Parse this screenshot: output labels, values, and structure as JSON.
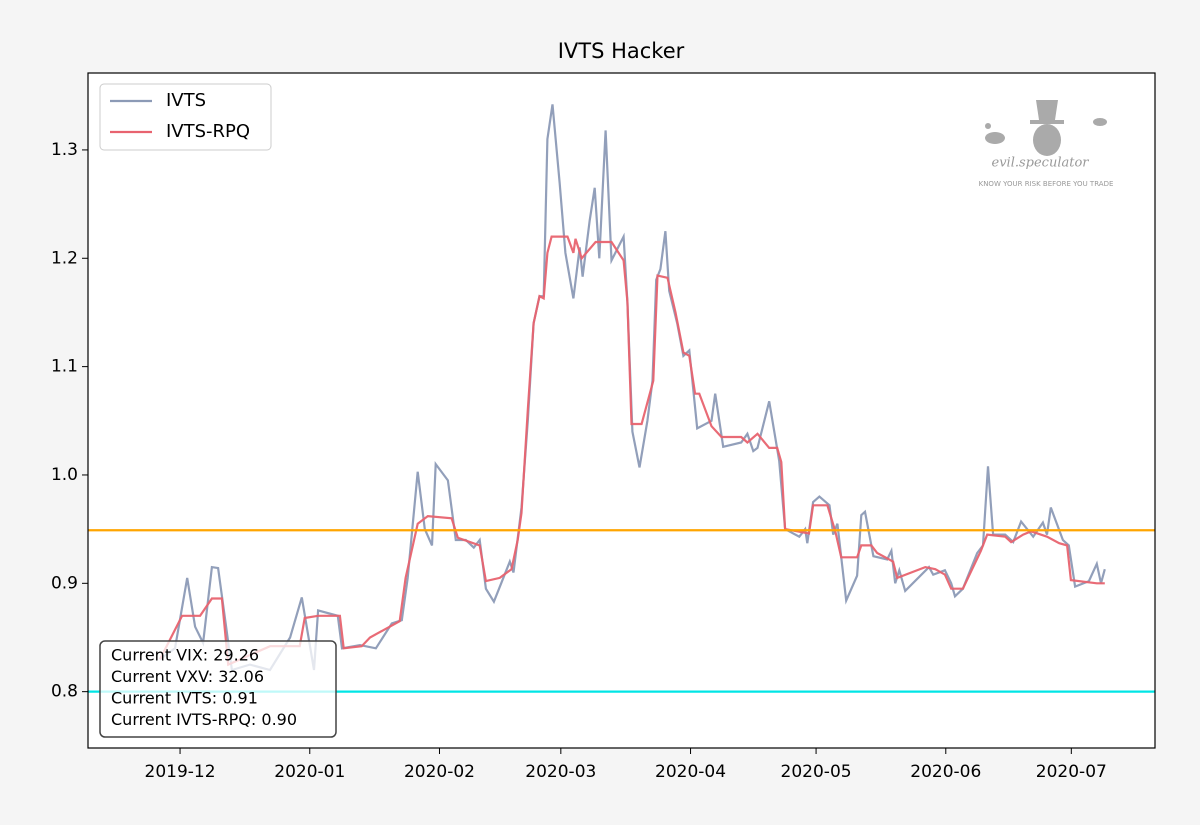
{
  "chart_data": {
    "type": "line",
    "title": "IVTS Hacker",
    "xlim": [
      -22,
      233
    ],
    "xticks": [
      {
        "value": 0,
        "label": "2019-12"
      },
      {
        "value": 31,
        "label": "2020-01"
      },
      {
        "value": 62,
        "label": "2020-02"
      },
      {
        "value": 91,
        "label": "2020-03"
      },
      {
        "value": 122,
        "label": "2020-04"
      },
      {
        "value": 152,
        "label": "2020-05"
      },
      {
        "value": 183,
        "label": "2020-06"
      },
      {
        "value": 213,
        "label": "2020-07"
      }
    ],
    "ylim": [
      0.748,
      1.371
    ],
    "yticks": [
      0.8,
      0.9,
      1.0,
      1.1,
      1.2,
      1.3
    ],
    "ytick_labels": [
      "0.8",
      "0.9",
      "1.0",
      "1.1",
      "1.2",
      "1.3"
    ],
    "legend": "upper left",
    "reference_lines": [
      {
        "value": 0.949,
        "color": "#ffa500"
      },
      {
        "value": 0.8,
        "color": "#00e5e5"
      }
    ],
    "annotations": [
      "Current VIX: 29.26",
      "Current VXV: 32.06",
      "Current IVTS: 0.91",
      "Current IVTS-RPQ: 0.90"
    ],
    "watermark": [
      "evil.speculator",
      "KNOW YOUR RISK BEFORE YOU TRADE"
    ],
    "series": [
      {
        "name": "IVTS",
        "color": "#8c9ab6",
        "x": [
          -4.8,
          -1.2,
          1.7,
          3.6,
          5.5,
          7.6,
          9.1,
          11,
          12.4,
          16.7,
          21.5,
          26.3,
          29.1,
          32,
          33,
          37.7,
          38.7,
          43,
          46.8,
          50.6,
          53,
          54.4,
          56.8,
          58.5,
          60.2,
          61.1,
          64,
          65.9,
          68.3,
          70.2,
          71.6,
          73.1,
          75,
          78.8,
          79.7,
          81.6,
          83.1,
          84.5,
          85.9,
          86.9,
          87.8,
          89,
          90.7,
          92.1,
          94,
          95.5,
          96.2,
          97.9,
          99.1,
          100.2,
          101.7,
          103.1,
          106,
          106.9,
          108.1,
          109.8,
          111.7,
          112.9,
          113.8,
          114.8,
          116,
          116.9,
          118.8,
          120.3,
          121.7,
          123.6,
          127,
          127.9,
          129.8,
          134.1,
          135.6,
          137,
          138,
          140.8,
          143.2,
          144.6,
          148,
          149.4,
          149.9,
          151.3,
          152.8,
          155.2,
          156.1,
          157.1,
          159.2,
          161.8,
          162.8,
          163.7,
          165.7,
          169,
          170,
          170.9,
          171.9,
          173.3,
          179,
          180,
          182.8,
          184.3,
          185.2,
          187.1,
          190.5,
          191.9,
          193.1,
          194.3,
          197.2,
          199.1,
          201,
          203.9,
          206.2,
          207.2,
          208.1,
          211,
          212.4,
          213.9,
          217.2,
          219.1,
          220.1,
          221
        ],
        "values": [
          0.83,
          0.84,
          0.905,
          0.86,
          0.845,
          0.915,
          0.914,
          0.86,
          0.82,
          0.825,
          0.82,
          0.85,
          0.887,
          0.82,
          0.875,
          0.87,
          0.84,
          0.843,
          0.84,
          0.863,
          0.866,
          0.905,
          1.003,
          0.95,
          0.935,
          1.01,
          0.995,
          0.94,
          0.94,
          0.933,
          0.94,
          0.895,
          0.883,
          0.92,
          0.91,
          0.97,
          1.05,
          1.14,
          1.165,
          1.165,
          1.31,
          1.342,
          1.27,
          1.205,
          1.163,
          1.21,
          1.183,
          1.235,
          1.265,
          1.2,
          1.318,
          1.198,
          1.22,
          1.16,
          1.04,
          1.007,
          1.05,
          1.087,
          1.18,
          1.19,
          1.225,
          1.17,
          1.14,
          1.11,
          1.115,
          1.043,
          1.05,
          1.075,
          1.026,
          1.03,
          1.038,
          1.022,
          1.025,
          1.068,
          1.013,
          0.95,
          0.943,
          0.95,
          0.937,
          0.975,
          0.98,
          0.972,
          0.945,
          0.955,
          0.884,
          0.907,
          0.963,
          0.966,
          0.925,
          0.922,
          0.93,
          0.9,
          0.912,
          0.893,
          0.915,
          0.908,
          0.912,
          0.9,
          0.888,
          0.895,
          0.928,
          0.935,
          1.008,
          0.945,
          0.945,
          0.938,
          0.957,
          0.943,
          0.956,
          0.945,
          0.97,
          0.94,
          0.935,
          0.897,
          0.902,
          0.918,
          0.9,
          0.913
        ]
      },
      {
        "name": "IVTS-RPQ",
        "color": "#e8636f",
        "x": [
          -4.8,
          0.5,
          4.8,
          7.6,
          10,
          11.5,
          21.5,
          28.6,
          29.8,
          33,
          38.2,
          39.1,
          43.4,
          45.4,
          52.5,
          53.9,
          56.8,
          59.2,
          64.9,
          66.4,
          71.6,
          73.1,
          76.4,
          79.2,
          80.7,
          81.6,
          83.1,
          84.5,
          85.9,
          86.9,
          87.8,
          88.8,
          92.6,
          94,
          94.5,
          96,
          99.3,
          103.1,
          106,
          106.9,
          107.9,
          110.3,
          113.1,
          114.1,
          116.5,
          118.4,
          120.3,
          121.7,
          123.1,
          124.1,
          127,
          129.4,
          134.1,
          135.6,
          138,
          140.8,
          142.7,
          143.7,
          144.6,
          150.3,
          151.3,
          154.7,
          156.6,
          158,
          161.8,
          162.8,
          165.2,
          166.6,
          170.4,
          171.4,
          178.1,
          180.5,
          182.8,
          184.3,
          187.1,
          191.4,
          192.9,
          197.2,
          198.6,
          201.5,
          203.4,
          207.2,
          210.1,
          212,
          212.9,
          219.1,
          221
        ],
        "values": [
          0.83,
          0.87,
          0.87,
          0.886,
          0.886,
          0.825,
          0.842,
          0.842,
          0.868,
          0.87,
          0.87,
          0.84,
          0.842,
          0.85,
          0.865,
          0.905,
          0.955,
          0.962,
          0.96,
          0.942,
          0.935,
          0.902,
          0.905,
          0.913,
          0.94,
          0.965,
          1.06,
          1.14,
          1.165,
          1.163,
          1.205,
          1.22,
          1.22,
          1.205,
          1.218,
          1.2,
          1.215,
          1.215,
          1.198,
          1.16,
          1.047,
          1.047,
          1.087,
          1.184,
          1.182,
          1.15,
          1.113,
          1.11,
          1.075,
          1.075,
          1.045,
          1.035,
          1.035,
          1.03,
          1.038,
          1.025,
          1.025,
          1.012,
          0.95,
          0.946,
          0.972,
          0.972,
          0.948,
          0.924,
          0.924,
          0.935,
          0.935,
          0.928,
          0.92,
          0.905,
          0.915,
          0.913,
          0.908,
          0.895,
          0.895,
          0.93,
          0.945,
          0.943,
          0.938,
          0.945,
          0.948,
          0.943,
          0.937,
          0.935,
          0.903,
          0.9,
          0.9
        ]
      }
    ]
  }
}
